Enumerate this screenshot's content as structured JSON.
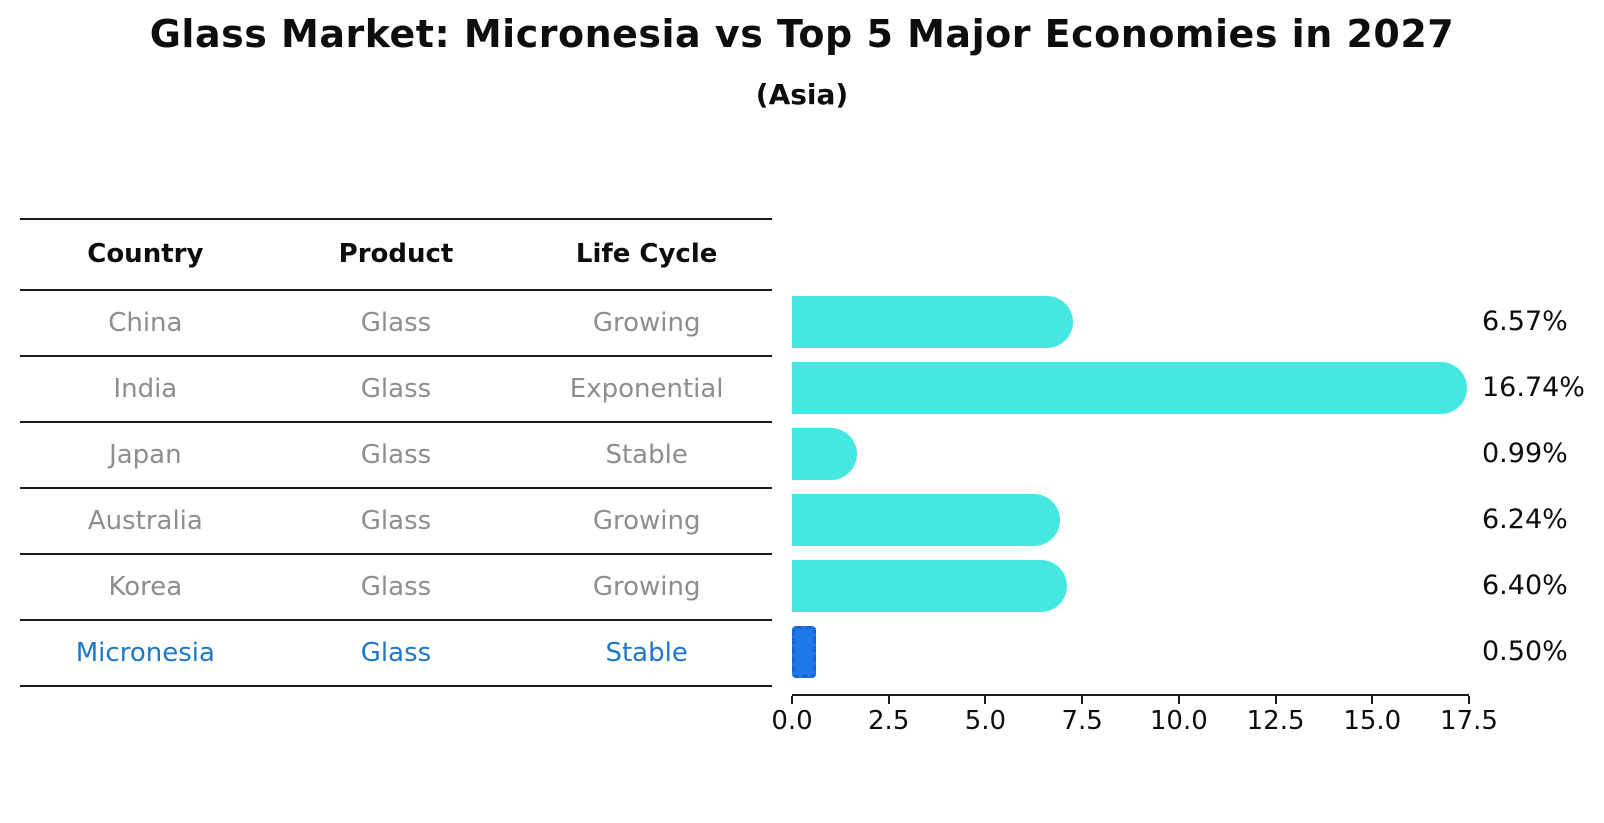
{
  "title": "Glass Market: Micronesia vs Top 5 Major Economies in 2027",
  "subtitle": "(Asia)",
  "table": {
    "headers": [
      "Country",
      "Product",
      "Life Cycle"
    ],
    "rows": [
      {
        "country": "China",
        "product": "Glass",
        "life_cycle": "Growing"
      },
      {
        "country": "India",
        "product": "Glass",
        "life_cycle": "Exponential"
      },
      {
        "country": "Japan",
        "product": "Glass",
        "life_cycle": "Stable"
      },
      {
        "country": "Australia",
        "product": "Glass",
        "life_cycle": "Growing"
      },
      {
        "country": "Korea",
        "product": "Glass",
        "life_cycle": "Growing"
      },
      {
        "country": "Micronesia",
        "product": "Glass",
        "life_cycle": "Stable"
      }
    ]
  },
  "chart_data": {
    "type": "bar",
    "orientation": "horizontal",
    "title": "Glass Market: Micronesia vs Top 5 Major Economies in 2027",
    "subtitle": "(Asia)",
    "categories": [
      "China",
      "India",
      "Japan",
      "Australia",
      "Korea",
      "Micronesia"
    ],
    "values": [
      6.57,
      16.74,
      0.99,
      6.24,
      6.4,
      0.5
    ],
    "value_labels": [
      "6.57%",
      "16.74%",
      "0.99%",
      "6.24%",
      "6.40%",
      "0.50%"
    ],
    "x_ticks": [
      0.0,
      2.5,
      5.0,
      7.5,
      10.0,
      12.5,
      15.0,
      17.5
    ],
    "x_tick_labels": [
      "0.0",
      "2.5",
      "5.0",
      "7.5",
      "10.0",
      "12.5",
      "15.0",
      "17.5"
    ],
    "xlim": [
      0,
      17.5
    ],
    "grid": false,
    "legend": false,
    "highlight_index": 5,
    "bar_color": "#45e8e1",
    "highlight_color": "#1e78e6",
    "highlight_text_color": "#1f77c9"
  }
}
